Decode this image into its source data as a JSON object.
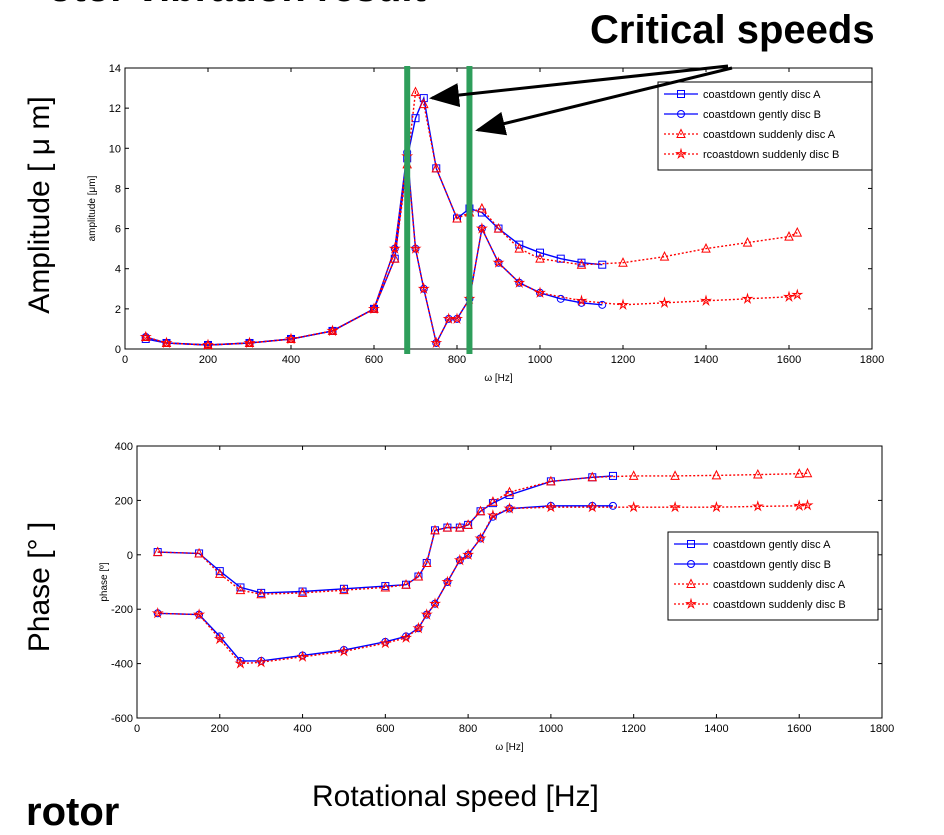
{
  "header": {
    "title_partial": "otor vibration result",
    "critical_label": "Critical speeds",
    "rotor_label": "rotor",
    "amp_ylabel": "Amplitude [ μ m]",
    "phase_ylabel": "Phase [°  ]",
    "x_label": "Rotational speed [Hz]"
  },
  "colors": {
    "blue": "#0000ff",
    "red": "#ff0000",
    "green": "#2e9e5b",
    "arrow": "#000000"
  },
  "chart_data": [
    {
      "type": "line",
      "name": "amplitude",
      "xlabel": "ω [Hz]",
      "ylabel": "amplitude [μm]",
      "xlim": [
        0,
        1800
      ],
      "ylim": [
        0,
        14
      ],
      "xticks": [
        0,
        200,
        400,
        600,
        800,
        1000,
        1200,
        1400,
        1600,
        1800
      ],
      "yticks": [
        0,
        2,
        4,
        6,
        8,
        10,
        12,
        14
      ],
      "critical_speeds": [
        680,
        830
      ],
      "legend": [
        "coastdown gently disc A",
        "coastdown gently disc B",
        "coastdown suddenly disc A",
        "rcoastdown suddenly disc B"
      ],
      "series": [
        {
          "name": "coastdown gently disc A",
          "color": "blue",
          "marker": "square",
          "x": [
            50,
            100,
            200,
            300,
            400,
            500,
            600,
            650,
            680,
            700,
            720,
            750,
            800,
            830,
            860,
            900,
            950,
            1000,
            1050,
            1100,
            1150
          ],
          "y": [
            0.5,
            0.3,
            0.2,
            0.3,
            0.5,
            0.9,
            2.0,
            4.5,
            9.5,
            11.5,
            12.5,
            9.0,
            6.5,
            7.0,
            6.8,
            6.0,
            5.2,
            4.8,
            4.5,
            4.3,
            4.2
          ]
        },
        {
          "name": "coastdown gently disc B",
          "color": "blue",
          "marker": "circle",
          "x": [
            50,
            100,
            200,
            300,
            400,
            500,
            600,
            650,
            680,
            700,
            720,
            750,
            780,
            800,
            830,
            860,
            900,
            950,
            1000,
            1050,
            1100,
            1150
          ],
          "y": [
            0.6,
            0.3,
            0.2,
            0.3,
            0.5,
            0.9,
            2.0,
            5.0,
            9.8,
            5.0,
            3.0,
            0.3,
            1.5,
            1.5,
            2.5,
            6.0,
            4.3,
            3.3,
            2.8,
            2.5,
            2.3,
            2.2
          ]
        },
        {
          "name": "coastdown suddenly disc A",
          "color": "red",
          "marker": "triangle",
          "x": [
            50,
            100,
            200,
            300,
            400,
            500,
            600,
            650,
            680,
            700,
            720,
            750,
            800,
            830,
            860,
            900,
            950,
            1000,
            1100,
            1200,
            1300,
            1400,
            1500,
            1600,
            1620
          ],
          "y": [
            0.6,
            0.3,
            0.2,
            0.3,
            0.5,
            0.9,
            2.0,
            4.5,
            9.2,
            12.8,
            12.2,
            9.0,
            6.5,
            6.8,
            7.0,
            6.0,
            5.0,
            4.5,
            4.2,
            4.3,
            4.6,
            5.0,
            5.3,
            5.6,
            5.8
          ]
        },
        {
          "name": "rcoastdown suddenly disc B",
          "color": "red",
          "marker": "star",
          "x": [
            50,
            100,
            200,
            300,
            400,
            500,
            600,
            650,
            680,
            700,
            720,
            750,
            780,
            800,
            830,
            860,
            900,
            950,
            1000,
            1100,
            1200,
            1300,
            1400,
            1500,
            1600,
            1620
          ],
          "y": [
            0.6,
            0.3,
            0.2,
            0.3,
            0.5,
            0.9,
            2.0,
            5.0,
            9.6,
            5.0,
            3.0,
            0.3,
            1.5,
            1.5,
            2.5,
            6.0,
            4.3,
            3.3,
            2.8,
            2.4,
            2.2,
            2.3,
            2.4,
            2.5,
            2.6,
            2.7
          ]
        }
      ]
    },
    {
      "type": "line",
      "name": "phase",
      "xlabel": "ω [Hz]",
      "ylabel": "phase [º]",
      "xlim": [
        0,
        1800
      ],
      "ylim": [
        -600,
        400
      ],
      "xticks": [
        0,
        200,
        400,
        600,
        800,
        1000,
        1200,
        1400,
        1600,
        1800
      ],
      "yticks": [
        -600,
        -400,
        -200,
        0,
        200,
        400
      ],
      "legend": [
        "coastdown gently disc A",
        "coastdown gently disc B",
        "coastdown suddenly disc A",
        "coastdown suddenly disc B"
      ],
      "series": [
        {
          "name": "coastdown gently disc A",
          "color": "blue",
          "marker": "square",
          "x": [
            50,
            150,
            200,
            250,
            300,
            400,
            500,
            600,
            650,
            680,
            700,
            720,
            750,
            780,
            800,
            830,
            860,
            900,
            1000,
            1100,
            1150
          ],
          "y": [
            10,
            5,
            -60,
            -120,
            -140,
            -135,
            -125,
            -115,
            -110,
            -80,
            -30,
            90,
            100,
            100,
            110,
            160,
            190,
            220,
            270,
            285,
            290
          ]
        },
        {
          "name": "coastdown gently disc B",
          "color": "blue",
          "marker": "circle",
          "x": [
            50,
            150,
            200,
            250,
            300,
            400,
            500,
            600,
            650,
            680,
            700,
            720,
            750,
            780,
            800,
            830,
            860,
            900,
            1000,
            1100,
            1150
          ],
          "y": [
            -215,
            -220,
            -300,
            -390,
            -390,
            -370,
            -350,
            -320,
            -300,
            -270,
            -220,
            -180,
            -100,
            -20,
            0,
            60,
            140,
            170,
            180,
            180,
            180
          ]
        },
        {
          "name": "coastdown suddenly disc A",
          "color": "red",
          "marker": "triangle",
          "x": [
            50,
            150,
            200,
            250,
            300,
            400,
            500,
            600,
            650,
            680,
            700,
            720,
            750,
            780,
            800,
            830,
            860,
            900,
            1000,
            1100,
            1200,
            1300,
            1400,
            1500,
            1600,
            1620
          ],
          "y": [
            10,
            5,
            -70,
            -130,
            -145,
            -140,
            -130,
            -120,
            -110,
            -80,
            -30,
            90,
            100,
            100,
            110,
            160,
            195,
            230,
            270,
            285,
            290,
            290,
            292,
            295,
            298,
            300
          ]
        },
        {
          "name": "coastdown suddenly disc B",
          "color": "red",
          "marker": "star",
          "x": [
            50,
            150,
            200,
            250,
            300,
            400,
            500,
            600,
            650,
            680,
            700,
            720,
            750,
            780,
            800,
            830,
            860,
            900,
            1000,
            1100,
            1200,
            1300,
            1400,
            1500,
            1600,
            1620
          ],
          "y": [
            -215,
            -220,
            -310,
            -400,
            -395,
            -375,
            -355,
            -325,
            -305,
            -270,
            -220,
            -180,
            -100,
            -20,
            0,
            60,
            145,
            170,
            175,
            175,
            175,
            175,
            175,
            178,
            180,
            182
          ]
        }
      ]
    }
  ]
}
